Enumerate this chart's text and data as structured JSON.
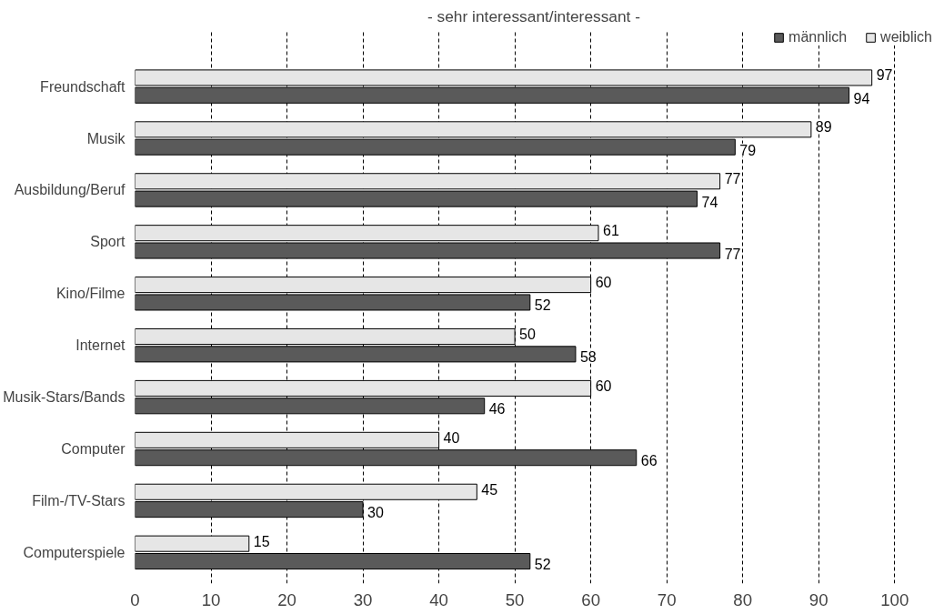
{
  "chart_data": {
    "type": "bar",
    "orientation": "horizontal",
    "title": "- sehr interessant/interessant -",
    "categories": [
      "Freundschaft",
      "Musik",
      "Ausbildung/Beruf",
      "Sport",
      "Kino/Filme",
      "Internet",
      "Musik-Stars/Bands",
      "Computer",
      "Film-/TV-Stars",
      "Computerspiele"
    ],
    "series": [
      {
        "name": "männlich",
        "color": "#5a5a5a",
        "values": [
          94,
          79,
          74,
          77,
          52,
          58,
          46,
          66,
          30,
          52
        ]
      },
      {
        "name": "weiblich",
        "color": "#e6e6e6",
        "values": [
          97,
          89,
          77,
          61,
          60,
          50,
          60,
          40,
          45,
          15
        ]
      }
    ],
    "xlim": [
      0,
      100
    ],
    "xticks": [
      0,
      10,
      20,
      30,
      40,
      50,
      60,
      70,
      80,
      90,
      100
    ],
    "grid": "x",
    "legend": "top right",
    "data_labels": true
  }
}
